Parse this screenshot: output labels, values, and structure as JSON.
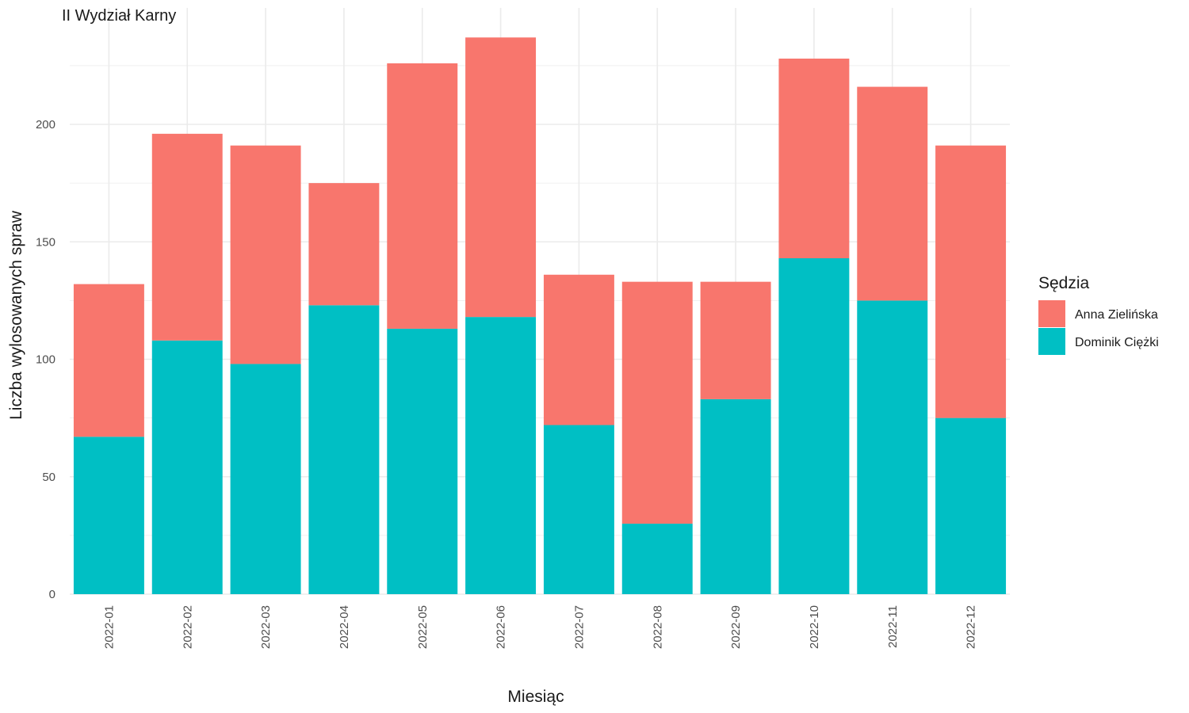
{
  "chart_data": {
    "type": "bar",
    "stacked": true,
    "title": "II Wydział Karny",
    "xlabel": "Miesiąc",
    "ylabel": "Liczba wylosowanych spraw",
    "legend_title": "Sędzia",
    "legend_position": "right",
    "grid": true,
    "ylim": [
      0,
      240
    ],
    "yticks": [
      0,
      50,
      100,
      150,
      200
    ],
    "categories": [
      "2022-01",
      "2022-02",
      "2022-03",
      "2022-04",
      "2022-05",
      "2022-06",
      "2022-07",
      "2022-08",
      "2022-09",
      "2022-10",
      "2022-11",
      "2022-12"
    ],
    "series": [
      {
        "name": "Dominik Ciężki",
        "color": "#00BFC4",
        "values": [
          67,
          108,
          98,
          123,
          113,
          118,
          72,
          30,
          83,
          143,
          125,
          75
        ]
      },
      {
        "name": "Anna Zielińska",
        "color": "#F8766D",
        "values": [
          65,
          88,
          93,
          52,
          113,
          119,
          64,
          103,
          50,
          85,
          91,
          116
        ]
      }
    ],
    "legend_order": [
      "Anna Zielińska",
      "Dominik Ciężki"
    ]
  }
}
